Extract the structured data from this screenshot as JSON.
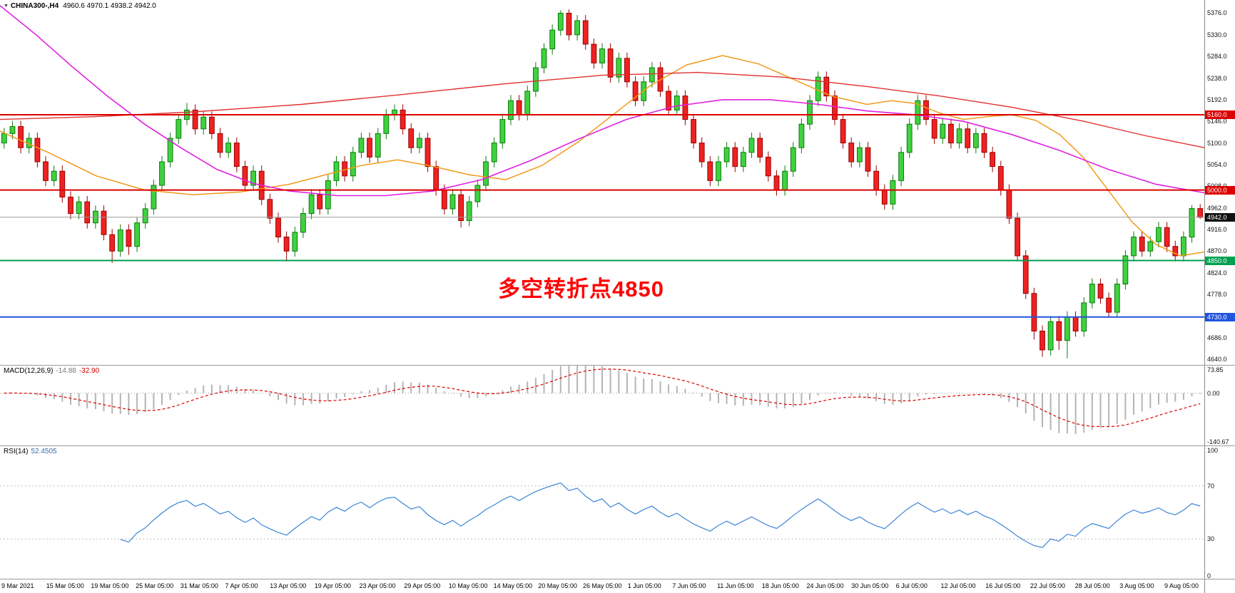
{
  "header": {
    "marker": "▼",
    "symbol": "CHINA300-,H4",
    "ohlc": "4960.6 4970.1 4938.2 4942.0"
  },
  "panes": {
    "macd": {
      "label": "MACD(12,26,9)",
      "value_main": "-14.88",
      "value_signal": "-32.90",
      "axis": [
        "73.85",
        "0.00",
        "-140.67"
      ],
      "max": 73.85,
      "min": -140.67
    },
    "rsi": {
      "label": "RSI(14)",
      "value": "52.4505",
      "axis": [
        "100",
        "70",
        "30",
        "0"
      ],
      "levels": [
        70,
        30
      ],
      "max": 100,
      "min": 0
    }
  },
  "price_axis": {
    "ticks": [
      "5376.0",
      "5330.0",
      "5284.0",
      "5238.0",
      "5192.0",
      "5146.0",
      "5100.0",
      "5054.0",
      "5008.0",
      "4962.0",
      "4916.0",
      "4870.0",
      "4824.0",
      "4778.0",
      "4732.0",
      "4686.0",
      "4640.0"
    ]
  },
  "x_axis": {
    "labels": [
      "9 Mar 2021",
      "15 Mar 05:00",
      "19 Mar 05:00",
      "25 Mar 05:00",
      "31 Mar 05:00",
      "7 Apr 05:00",
      "13 Apr 05:00",
      "19 Apr 05:00",
      "23 Apr 05:00",
      "29 Apr 05:00",
      "10 May 05:00",
      "14 May 05:00",
      "20 May 05:00",
      "26 May 05:00",
      "1 Jun 05:00",
      "7 Jun 05:00",
      "11 Jun 05:00",
      "18 Jun 05:00",
      "24 Jun 05:00",
      "30 Jun 05:00",
      "6 Jul 05:00",
      "12 Jul 05:00",
      "16 Jul 05:00",
      "22 Jul 05:00",
      "28 Jul 05:00",
      "3 Aug 05:00",
      "9 Aug 05:00"
    ]
  },
  "chart_data": {
    "type": "candlestick",
    "symbol": "CHINA300-",
    "timeframe": "H4",
    "title": "CHINA300- H4 candlestick chart with MACD(12,26,9) and RSI(14)",
    "y_range": {
      "top": 5404,
      "bottom": 4628
    },
    "tick_step": 46,
    "colors": {
      "bull_fill": "#3fd23f",
      "bull_stroke": "#0c7a0c",
      "bear_fill": "#ee2222",
      "bear_stroke": "#9b0000",
      "macd_hist": "#b4b4b4",
      "macd_signal": "#dd0000",
      "rsi_line": "#3a85d8",
      "current_line": "#9a9a9a"
    },
    "hlines": [
      {
        "price": 5160,
        "label": "5160.0",
        "color": "#dd0000"
      },
      {
        "price": 5000,
        "label": "5000.0",
        "color": "#dd0000"
      },
      {
        "price": 4850,
        "label": "4850.0",
        "color": "#00a050"
      },
      {
        "price": 4730,
        "label": "4730.0",
        "color": "#2255dd"
      }
    ],
    "current_price": {
      "price": 4942,
      "label": "4942.0",
      "badge_color": "#101010"
    },
    "annotation": {
      "text": "多空转折点4850",
      "color": "#ff0000"
    },
    "last_bar": {
      "open": 4960.6,
      "high": 4970.1,
      "low": 4938.2,
      "close": 4942.0
    },
    "overlays": [
      {
        "name": "ma-fast-orange",
        "color": "#f29a1a",
        "width": 1.5,
        "points": [
          [
            0,
            5125
          ],
          [
            0.04,
            5080
          ],
          [
            0.08,
            5030
          ],
          [
            0.12,
            5000
          ],
          [
            0.16,
            4990
          ],
          [
            0.2,
            4996
          ],
          [
            0.24,
            5012
          ],
          [
            0.27,
            5032
          ],
          [
            0.3,
            5052
          ],
          [
            0.33,
            5064
          ],
          [
            0.36,
            5050
          ],
          [
            0.39,
            5032
          ],
          [
            0.42,
            5022
          ],
          [
            0.45,
            5052
          ],
          [
            0.48,
            5102
          ],
          [
            0.51,
            5162
          ],
          [
            0.54,
            5222
          ],
          [
            0.57,
            5266
          ],
          [
            0.6,
            5286
          ],
          [
            0.63,
            5268
          ],
          [
            0.66,
            5234
          ],
          [
            0.69,
            5200
          ],
          [
            0.72,
            5182
          ],
          [
            0.74,
            5190
          ],
          [
            0.76,
            5184
          ],
          [
            0.78,
            5164
          ],
          [
            0.8,
            5150
          ],
          [
            0.82,
            5156
          ],
          [
            0.84,
            5160
          ],
          [
            0.86,
            5148
          ],
          [
            0.88,
            5118
          ],
          [
            0.9,
            5068
          ],
          [
            0.92,
            5000
          ],
          [
            0.94,
            4932
          ],
          [
            0.96,
            4884
          ],
          [
            0.98,
            4860
          ],
          [
            1,
            4868
          ]
        ]
      },
      {
        "name": "ma-mid-magenta",
        "color": "#e020e0",
        "width": 1.6,
        "points": [
          [
            0,
            5392
          ],
          [
            0.03,
            5330
          ],
          [
            0.06,
            5262
          ],
          [
            0.09,
            5198
          ],
          [
            0.12,
            5140
          ],
          [
            0.15,
            5090
          ],
          [
            0.18,
            5044
          ],
          [
            0.21,
            5014
          ],
          [
            0.24,
            4998
          ],
          [
            0.28,
            4988
          ],
          [
            0.32,
            4988
          ],
          [
            0.36,
            4998
          ],
          [
            0.4,
            5022
          ],
          [
            0.44,
            5062
          ],
          [
            0.48,
            5108
          ],
          [
            0.52,
            5150
          ],
          [
            0.56,
            5178
          ],
          [
            0.6,
            5192
          ],
          [
            0.64,
            5192
          ],
          [
            0.68,
            5182
          ],
          [
            0.72,
            5168
          ],
          [
            0.76,
            5160
          ],
          [
            0.8,
            5146
          ],
          [
            0.84,
            5118
          ],
          [
            0.88,
            5084
          ],
          [
            0.92,
            5044
          ],
          [
            0.96,
            5012
          ],
          [
            1,
            4994
          ]
        ]
      },
      {
        "name": "ma-slow-red",
        "color": "#e03030",
        "width": 1.4,
        "points": [
          [
            0,
            5150
          ],
          [
            0.08,
            5156
          ],
          [
            0.16,
            5166
          ],
          [
            0.25,
            5182
          ],
          [
            0.33,
            5202
          ],
          [
            0.42,
            5226
          ],
          [
            0.5,
            5244
          ],
          [
            0.58,
            5250
          ],
          [
            0.65,
            5240
          ],
          [
            0.72,
            5220
          ],
          [
            0.78,
            5200
          ],
          [
            0.84,
            5176
          ],
          [
            0.9,
            5146
          ],
          [
            0.95,
            5116
          ],
          [
            1,
            5090
          ]
        ]
      }
    ],
    "candles": [
      [
        5100,
        5132,
        5088,
        5120
      ],
      [
        5120,
        5147,
        5108,
        5135
      ],
      [
        5135,
        5147,
        5078,
        5090
      ],
      [
        5090,
        5122,
        5078,
        5110
      ],
      [
        5110,
        5122,
        5048,
        5060
      ],
      [
        5060,
        5072,
        5008,
        5020
      ],
      [
        5020,
        5052,
        5008,
        5040
      ],
      [
        5040,
        5052,
        4973,
        4985
      ],
      [
        4985,
        4997,
        4938,
        4950
      ],
      [
        4950,
        4987,
        4938,
        4975
      ],
      [
        4975,
        4987,
        4918,
        4930
      ],
      [
        4930,
        4967,
        4918,
        4955
      ],
      [
        4955,
        4967,
        4893,
        4905
      ],
      [
        4905,
        4917,
        4845,
        4870
      ],
      [
        4870,
        4927,
        4858,
        4915
      ],
      [
        4915,
        4927,
        4862,
        4880
      ],
      [
        4880,
        4942,
        4868,
        4930
      ],
      [
        4930,
        4972,
        4918,
        4960
      ],
      [
        4960,
        5022,
        4948,
        5010
      ],
      [
        5010,
        5072,
        4998,
        5060
      ],
      [
        5060,
        5122,
        5048,
        5110
      ],
      [
        5110,
        5162,
        5098,
        5150
      ],
      [
        5150,
        5185,
        5138,
        5170
      ],
      [
        5170,
        5182,
        5118,
        5130
      ],
      [
        5130,
        5167,
        5118,
        5155
      ],
      [
        5155,
        5167,
        5108,
        5120
      ],
      [
        5120,
        5132,
        5068,
        5080
      ],
      [
        5080,
        5112,
        5068,
        5100
      ],
      [
        5100,
        5112,
        5038,
        5050
      ],
      [
        5050,
        5062,
        4998,
        5010
      ],
      [
        5010,
        5052,
        4998,
        5040
      ],
      [
        5040,
        5052,
        4968,
        4980
      ],
      [
        4980,
        4992,
        4928,
        4940
      ],
      [
        4940,
        4952,
        4888,
        4900
      ],
      [
        4900,
        4912,
        4848,
        4870
      ],
      [
        4870,
        4922,
        4858,
        4910
      ],
      [
        4910,
        4962,
        4898,
        4950
      ],
      [
        4950,
        5002,
        4938,
        4990
      ],
      [
        4990,
        5002,
        4948,
        4960
      ],
      [
        4960,
        5032,
        4948,
        5020
      ],
      [
        5020,
        5072,
        5008,
        5060
      ],
      [
        5060,
        5072,
        5018,
        5030
      ],
      [
        5030,
        5092,
        5018,
        5080
      ],
      [
        5080,
        5122,
        5068,
        5110
      ],
      [
        5110,
        5122,
        5058,
        5070
      ],
      [
        5070,
        5132,
        5058,
        5120
      ],
      [
        5120,
        5172,
        5108,
        5160
      ],
      [
        5160,
        5182,
        5148,
        5170
      ],
      [
        5170,
        5182,
        5118,
        5130
      ],
      [
        5130,
        5142,
        5078,
        5090
      ],
      [
        5090,
        5122,
        5078,
        5110
      ],
      [
        5110,
        5122,
        5038,
        5050
      ],
      [
        5050,
        5062,
        4988,
        5000
      ],
      [
        5000,
        5012,
        4948,
        4960
      ],
      [
        4960,
        5002,
        4948,
        4990
      ],
      [
        4990,
        5002,
        4920,
        4935
      ],
      [
        4935,
        4987,
        4923,
        4975
      ],
      [
        4975,
        5022,
        4963,
        5010
      ],
      [
        5010,
        5072,
        4998,
        5060
      ],
      [
        5060,
        5112,
        5048,
        5100
      ],
      [
        5100,
        5162,
        5088,
        5150
      ],
      [
        5150,
        5202,
        5138,
        5190
      ],
      [
        5190,
        5202,
        5148,
        5160
      ],
      [
        5160,
        5222,
        5148,
        5210
      ],
      [
        5210,
        5272,
        5198,
        5260
      ],
      [
        5260,
        5312,
        5248,
        5300
      ],
      [
        5300,
        5352,
        5288,
        5340
      ],
      [
        5340,
        5382,
        5328,
        5376
      ],
      [
        5376,
        5384,
        5318,
        5330
      ],
      [
        5330,
        5372,
        5318,
        5360
      ],
      [
        5360,
        5372,
        5298,
        5310
      ],
      [
        5310,
        5322,
        5258,
        5270
      ],
      [
        5270,
        5312,
        5258,
        5300
      ],
      [
        5300,
        5312,
        5228,
        5240
      ],
      [
        5240,
        5292,
        5228,
        5280
      ],
      [
        5280,
        5292,
        5218,
        5230
      ],
      [
        5230,
        5242,
        5178,
        5190
      ],
      [
        5190,
        5242,
        5178,
        5230
      ],
      [
        5230,
        5272,
        5218,
        5260
      ],
      [
        5260,
        5272,
        5198,
        5210
      ],
      [
        5210,
        5222,
        5158,
        5170
      ],
      [
        5170,
        5212,
        5158,
        5200
      ],
      [
        5200,
        5212,
        5138,
        5150
      ],
      [
        5150,
        5162,
        5088,
        5100
      ],
      [
        5100,
        5112,
        5048,
        5060
      ],
      [
        5060,
        5072,
        5008,
        5020
      ],
      [
        5020,
        5072,
        5008,
        5060
      ],
      [
        5060,
        5102,
        5048,
        5090
      ],
      [
        5090,
        5102,
        5038,
        5050
      ],
      [
        5050,
        5092,
        5038,
        5080
      ],
      [
        5080,
        5122,
        5068,
        5110
      ],
      [
        5110,
        5122,
        5058,
        5070
      ],
      [
        5070,
        5082,
        5018,
        5030
      ],
      [
        5030,
        5042,
        4988,
        5000
      ],
      [
        5000,
        5052,
        4988,
        5040
      ],
      [
        5040,
        5102,
        5028,
        5090
      ],
      [
        5090,
        5152,
        5078,
        5140
      ],
      [
        5140,
        5202,
        5128,
        5190
      ],
      [
        5190,
        5252,
        5178,
        5240
      ],
      [
        5240,
        5252,
        5188,
        5200
      ],
      [
        5200,
        5212,
        5138,
        5150
      ],
      [
        5150,
        5162,
        5088,
        5100
      ],
      [
        5100,
        5112,
        5048,
        5060
      ],
      [
        5060,
        5102,
        5048,
        5090
      ],
      [
        5090,
        5102,
        5028,
        5040
      ],
      [
        5040,
        5052,
        4988,
        5000
      ],
      [
        5000,
        5012,
        4958,
        4970
      ],
      [
        4970,
        5032,
        4958,
        5020
      ],
      [
        5020,
        5092,
        5008,
        5080
      ],
      [
        5080,
        5152,
        5068,
        5140
      ],
      [
        5140,
        5202,
        5128,
        5190
      ],
      [
        5190,
        5202,
        5138,
        5150
      ],
      [
        5150,
        5162,
        5098,
        5110
      ],
      [
        5110,
        5152,
        5098,
        5140
      ],
      [
        5140,
        5152,
        5088,
        5100
      ],
      [
        5100,
        5142,
        5088,
        5130
      ],
      [
        5130,
        5142,
        5078,
        5090
      ],
      [
        5090,
        5132,
        5078,
        5120
      ],
      [
        5120,
        5132,
        5068,
        5080
      ],
      [
        5080,
        5092,
        5038,
        5050
      ],
      [
        5050,
        5062,
        4988,
        5000
      ],
      [
        5000,
        5012,
        4928,
        4940
      ],
      [
        4940,
        4952,
        4848,
        4860
      ],
      [
        4860,
        4872,
        4768,
        4780
      ],
      [
        4780,
        4792,
        4682,
        4700
      ],
      [
        4700,
        4712,
        4645,
        4660
      ],
      [
        4660,
        4732,
        4648,
        4720
      ],
      [
        4720,
        4732,
        4660,
        4680
      ],
      [
        4680,
        4742,
        4642,
        4730
      ],
      [
        4730,
        4742,
        4688,
        4700
      ],
      [
        4700,
        4772,
        4688,
        4760
      ],
      [
        4760,
        4812,
        4748,
        4800
      ],
      [
        4800,
        4812,
        4758,
        4770
      ],
      [
        4770,
        4782,
        4728,
        4740
      ],
      [
        4740,
        4812,
        4728,
        4800
      ],
      [
        4800,
        4872,
        4788,
        4860
      ],
      [
        4860,
        4912,
        4848,
        4900
      ],
      [
        4900,
        4912,
        4858,
        4870
      ],
      [
        4870,
        4902,
        4858,
        4890
      ],
      [
        4890,
        4932,
        4878,
        4920
      ],
      [
        4920,
        4932,
        4868,
        4880
      ],
      [
        4880,
        4892,
        4848,
        4860
      ],
      [
        4860,
        4912,
        4848,
        4900
      ],
      [
        4900,
        4968,
        4888,
        4960.6
      ],
      [
        4960.6,
        4970.1,
        4938.2,
        4942.0
      ]
    ]
  }
}
